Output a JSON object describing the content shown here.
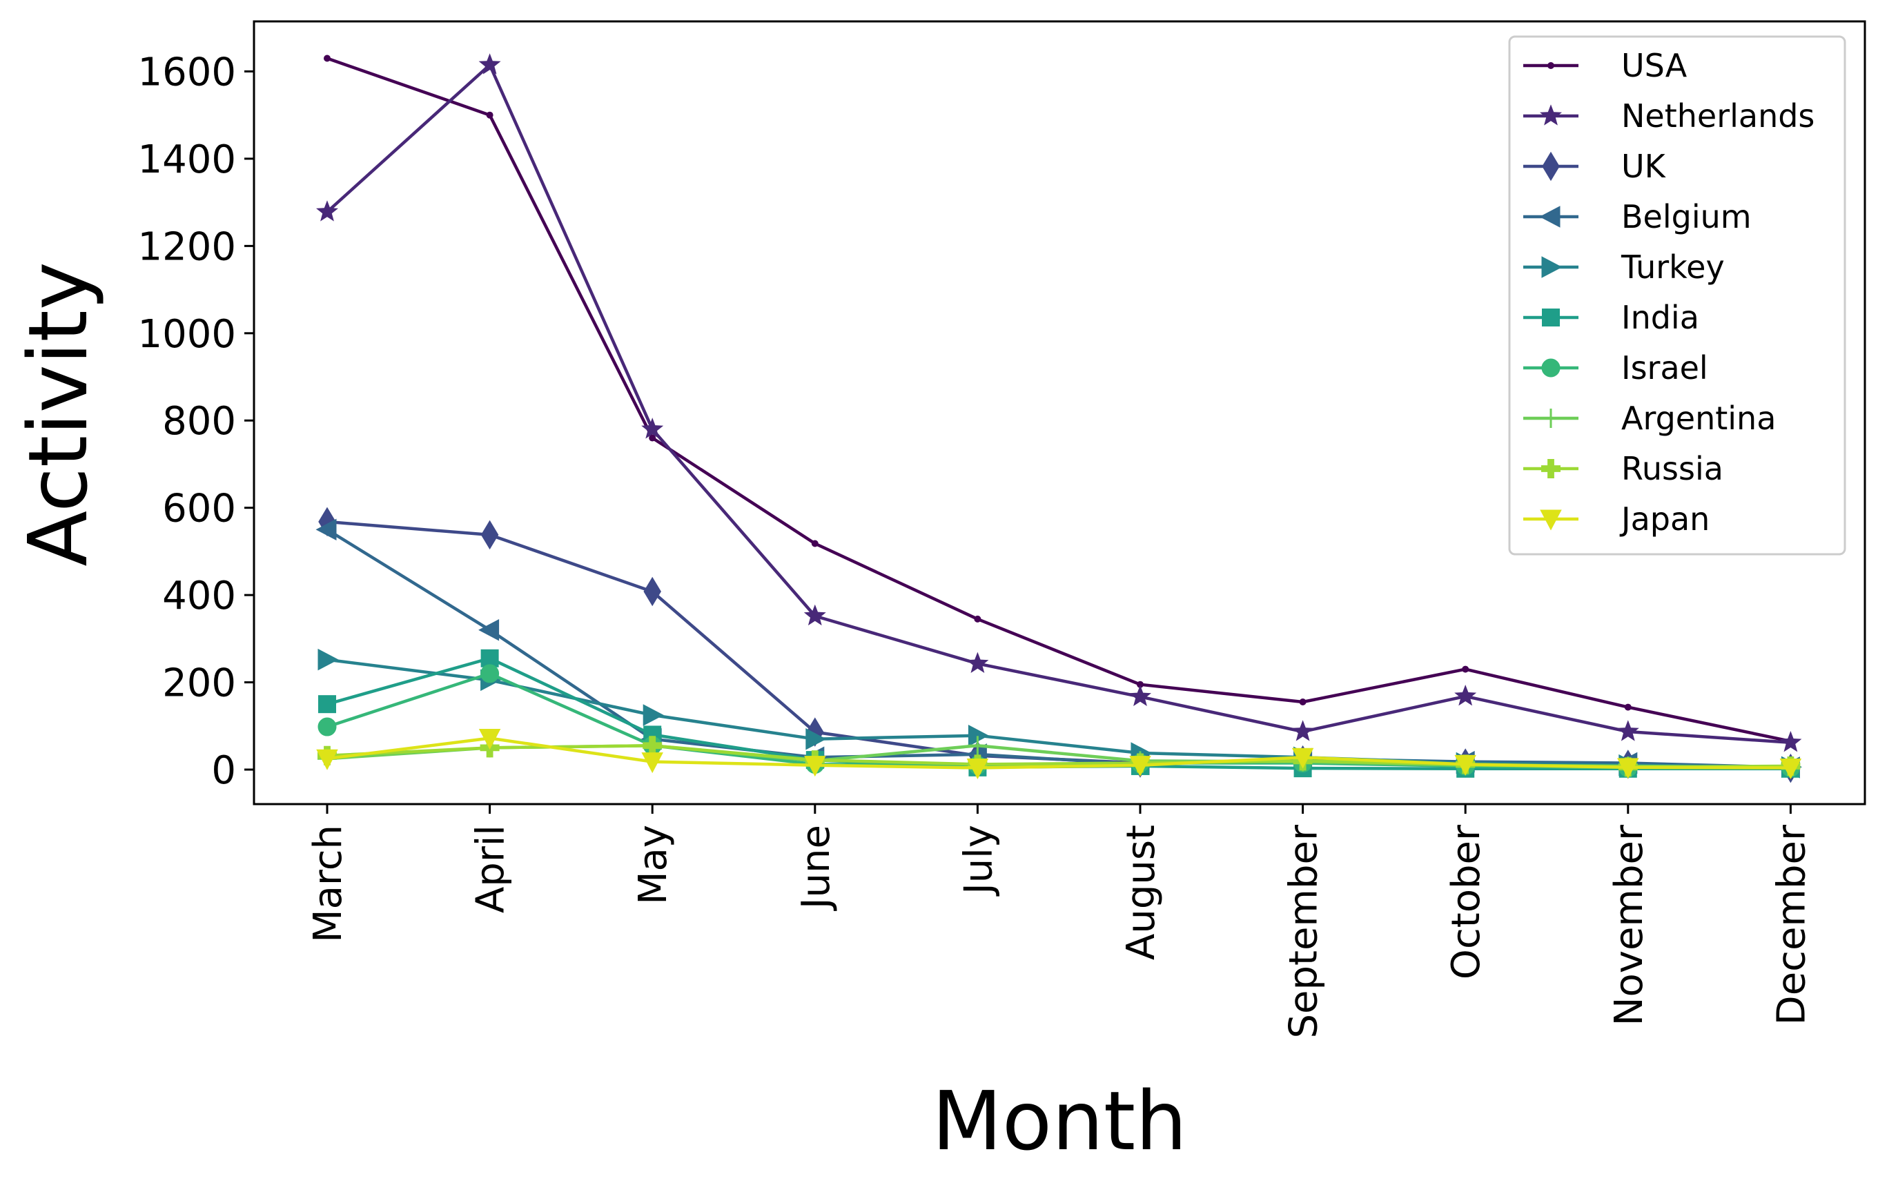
{
  "chart_data": {
    "type": "line",
    "xlabel": "Month",
    "ylabel": "Activity",
    "categories": [
      "March",
      "April",
      "May",
      "June",
      "July",
      "August",
      "September",
      "October",
      "November",
      "December"
    ],
    "ylim": [
      -80,
      1710
    ],
    "yticks": [
      0,
      200,
      400,
      600,
      800,
      1000,
      1200,
      1400,
      1600
    ],
    "grid": false,
    "legend_position": "top-right",
    "series": [
      {
        "name": "USA",
        "color": "#440154",
        "marker": "point",
        "values": [
          1630,
          1500,
          760,
          518,
          345,
          195,
          155,
          230,
          143,
          65
        ]
      },
      {
        "name": "Netherlands",
        "color": "#482878",
        "marker": "star",
        "values": [
          1278,
          1615,
          780,
          352,
          243,
          167,
          87,
          168,
          87,
          62
        ]
      },
      {
        "name": "UK",
        "color": "#3e4989",
        "marker": "thin-diamond",
        "values": [
          568,
          538,
          408,
          86,
          32,
          15,
          22,
          15,
          12,
          3
        ]
      },
      {
        "name": "Belgium",
        "color": "#31688e",
        "marker": "triangle-left",
        "values": [
          550,
          320,
          70,
          28,
          35,
          12,
          25,
          18,
          15,
          5
        ]
      },
      {
        "name": "Turkey",
        "color": "#26828e",
        "marker": "triangle-right",
        "values": [
          252,
          205,
          125,
          70,
          78,
          38,
          28,
          15,
          10,
          6
        ]
      },
      {
        "name": "India",
        "color": "#1f9e89",
        "marker": "square",
        "values": [
          150,
          255,
          80,
          22,
          5,
          8,
          3,
          2,
          2,
          2
        ]
      },
      {
        "name": "Israel",
        "color": "#35b779",
        "marker": "circle",
        "values": [
          98,
          220,
          55,
          12,
          10,
          15,
          15,
          8,
          4,
          4
        ]
      },
      {
        "name": "Argentina",
        "color": "#6ece58",
        "marker": "plus",
        "values": [
          25,
          50,
          55,
          20,
          55,
          20,
          18,
          10,
          8,
          5
        ]
      },
      {
        "name": "Russia",
        "color": "#9cd934",
        "marker": "plus-filled",
        "values": [
          32,
          50,
          55,
          22,
          12,
          15,
          20,
          12,
          6,
          8
        ]
      },
      {
        "name": "Japan",
        "color": "#dde318",
        "marker": "triangle-down",
        "values": [
          25,
          72,
          18,
          10,
          4,
          10,
          28,
          12,
          5,
          4
        ]
      }
    ]
  }
}
